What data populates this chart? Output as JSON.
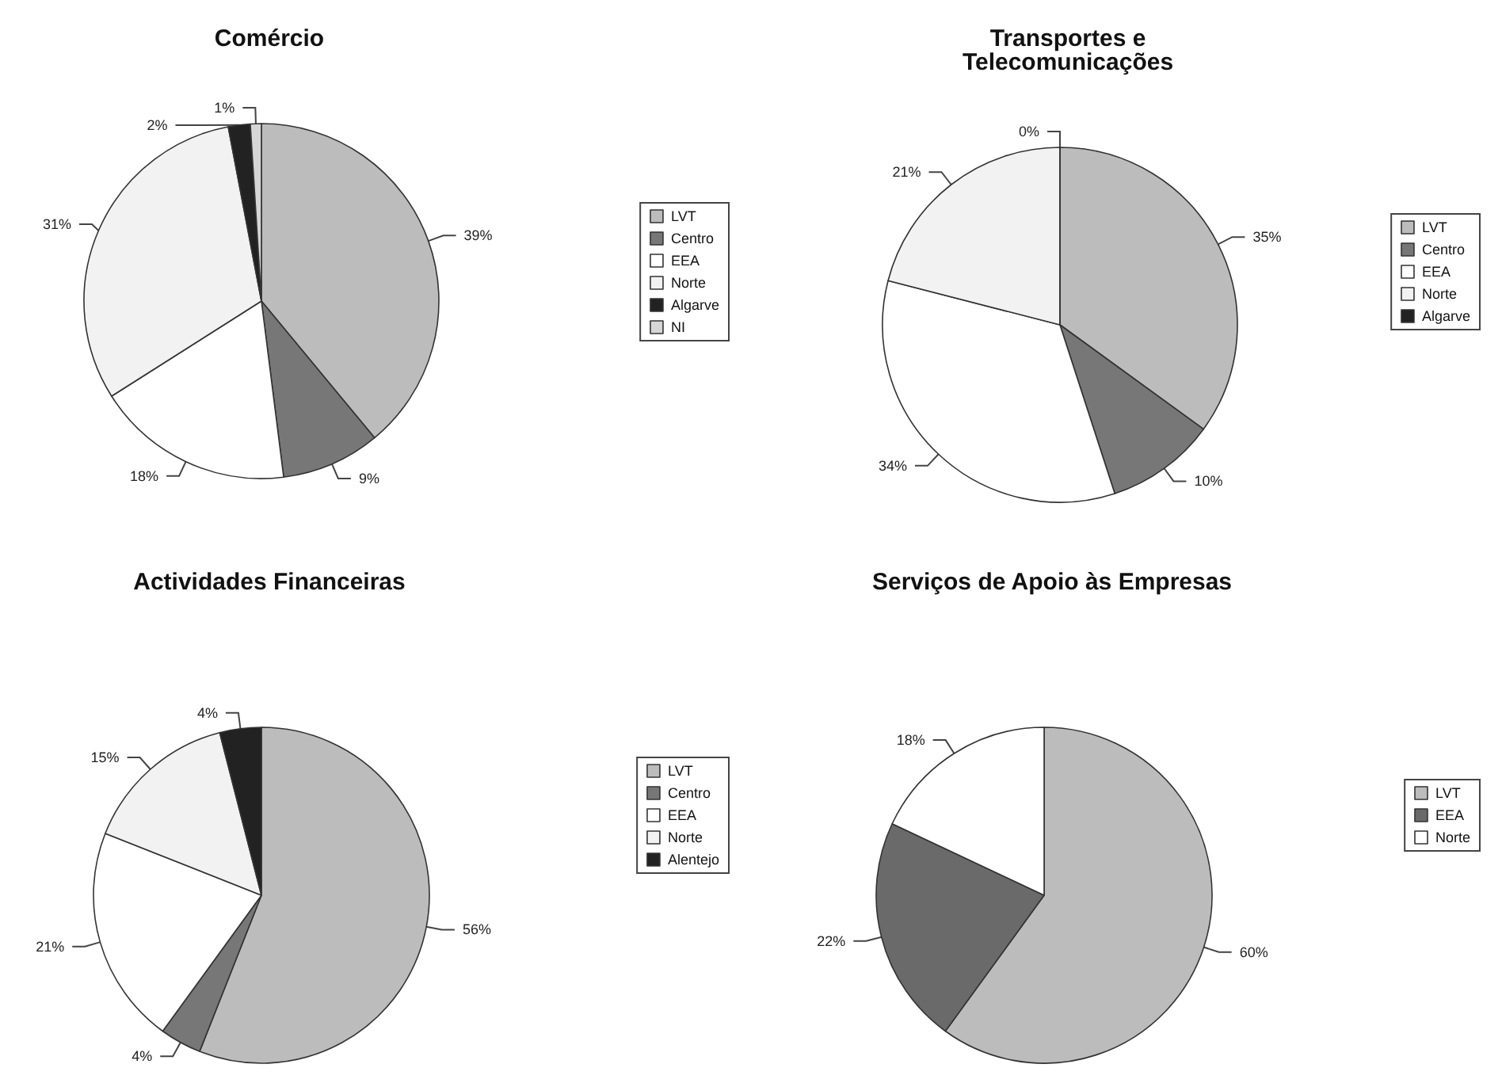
{
  "chart_data": [
    {
      "type": "pie",
      "title": "Comércio",
      "categories": [
        "LVT",
        "Centro",
        "EEA",
        "Norte",
        "Algarve",
        "NI"
      ],
      "values": [
        39,
        9,
        18,
        31,
        2,
        1
      ],
      "value_labels": [
        "39%",
        "9%",
        "18%",
        "31%",
        "2%",
        "1%"
      ],
      "colors": [
        "#bcbcbc",
        "#777777",
        "#ffffff",
        "#f2f2f2",
        "#222222",
        "#d6d6d6"
      ],
      "legend": "right"
    },
    {
      "type": "pie",
      "title": "Transportes e\nTelecomunicações",
      "categories": [
        "LVT",
        "Centro",
        "EEA",
        "Norte",
        "Algarve"
      ],
      "values": [
        35,
        10,
        34,
        21,
        0
      ],
      "value_labels": [
        "35%",
        "10%",
        "34%",
        "21%",
        "0%"
      ],
      "colors": [
        "#bcbcbc",
        "#777777",
        "#ffffff",
        "#f2f2f2",
        "#222222"
      ],
      "legend": "right"
    },
    {
      "type": "pie",
      "title": "Actividades Financeiras",
      "categories": [
        "LVT",
        "Centro",
        "EEA",
        "Norte",
        "Alentejo"
      ],
      "values": [
        56,
        4,
        21,
        15,
        4
      ],
      "value_labels": [
        "56%",
        "4%",
        "21%",
        "15%",
        "4%"
      ],
      "colors": [
        "#bcbcbc",
        "#777777",
        "#ffffff",
        "#f2f2f2",
        "#222222"
      ],
      "legend": "right"
    },
    {
      "type": "pie",
      "title": "Serviços de Apoio às Empresas",
      "categories": [
        "LVT",
        "EEA",
        "Norte"
      ],
      "values": [
        60,
        22,
        18
      ],
      "value_labels": [
        "60%",
        "22%",
        "18%"
      ],
      "colors": [
        "#bcbcbc",
        "#6a6a6a",
        "#ffffff"
      ],
      "legend": "right"
    }
  ]
}
